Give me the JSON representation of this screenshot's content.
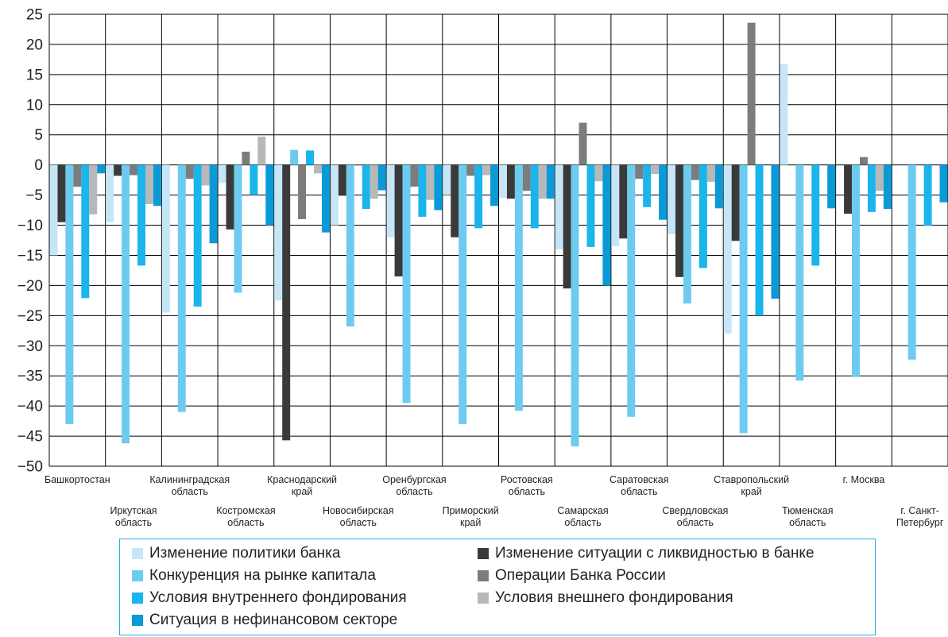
{
  "chart_data": {
    "type": "bar",
    "ylim": [
      -50,
      25
    ],
    "ytick_step": 5,
    "grid": true,
    "legend_position": "bottom",
    "categories": [
      [
        "Башкортостан"
      ],
      [
        "Иркутская",
        "область"
      ],
      [
        "Калининградская",
        "область"
      ],
      [
        "Костромская",
        "область"
      ],
      [
        "Краснодарский",
        "край"
      ],
      [
        "Новосибирская",
        "область"
      ],
      [
        "Оренбургская",
        "область"
      ],
      [
        "Приморский",
        "край"
      ],
      [
        "Ростовская",
        "область"
      ],
      [
        "Самарская",
        "область"
      ],
      [
        "Саратовская",
        "область"
      ],
      [
        "Свердловская",
        "область"
      ],
      [
        "Ставропольский",
        "край"
      ],
      [
        "Тюменская",
        "область"
      ],
      [
        "г. Москва"
      ],
      [
        "г. Санкт-",
        "Петербург"
      ]
    ],
    "series": [
      {
        "name": "Изменение политики банка",
        "color": "#c6e6f7",
        "values": [
          -15,
          -9.5,
          -24.5,
          -3,
          -22.5,
          -10,
          -12,
          -5,
          -5.5,
          -14,
          -13.5,
          -11.5,
          -28,
          16.7,
          0,
          0
        ]
      },
      {
        "name": "Изменение ситуации с ликвидностью в банке",
        "color": "#3a3a3a",
        "values": [
          -9.5,
          -1.8,
          0,
          -10.7,
          -45.7,
          -5.1,
          -18.5,
          -12,
          -5.6,
          -20.5,
          -12.2,
          -18.6,
          -12.6,
          0,
          -8.1,
          0
        ]
      },
      {
        "name": "Конкуренция на рынке капитала",
        "color": "#6dcbf0",
        "values": [
          -43,
          -46.2,
          -41,
          -21.2,
          2.5,
          -26.8,
          -39.5,
          -43,
          -40.8,
          -46.7,
          -41.8,
          -23,
          -44.5,
          -35.8,
          -35.2,
          -32.3
        ]
      },
      {
        "name": "Операции Банка России",
        "color": "#7c7c7c",
        "values": [
          -3.6,
          -1.7,
          -2.3,
          2.2,
          -9,
          -0.1,
          -3.6,
          -1.8,
          -4.3,
          7,
          -2.3,
          -2.5,
          23.6,
          0,
          1.3,
          0
        ]
      },
      {
        "name": "Условия внутреннего фондирования",
        "color": "#19b5eb",
        "values": [
          -22.1,
          -16.7,
          -23.5,
          -5,
          2.4,
          -7.3,
          -8.6,
          -10.5,
          -10.5,
          -13.6,
          -7,
          -17.1,
          -25,
          -16.7,
          -7.8,
          -10.1
        ]
      },
      {
        "name": "Условия внешнего фондирования",
        "color": "#b8b8b8",
        "values": [
          -8.2,
          -6.5,
          -3.4,
          4.7,
          -1.4,
          -5.6,
          -5.8,
          -1.7,
          -5.6,
          -2.7,
          -1.5,
          -2.8,
          0,
          0,
          -4.3,
          0
        ]
      },
      {
        "name": "Ситуация в нефинансовом секторе",
        "color": "#0a9ad8",
        "values": [
          -1.4,
          -6.8,
          -13,
          -10,
          -11.2,
          -4.2,
          -7.5,
          -6.8,
          -5.6,
          -20,
          -9.1,
          -7.2,
          -22.2,
          -7.2,
          -7.3,
          -6.2
        ]
      }
    ]
  },
  "legend": {
    "items": [
      "Изменение политики банка",
      "Изменение ситуации с ликвидностью в банке",
      "Конкуренция на рынке капитала",
      "Операции Банка России",
      "Условия внутреннего фондирования",
      "Условия внешнего фондирования",
      "Ситуация в нефинансовом секторе"
    ]
  }
}
